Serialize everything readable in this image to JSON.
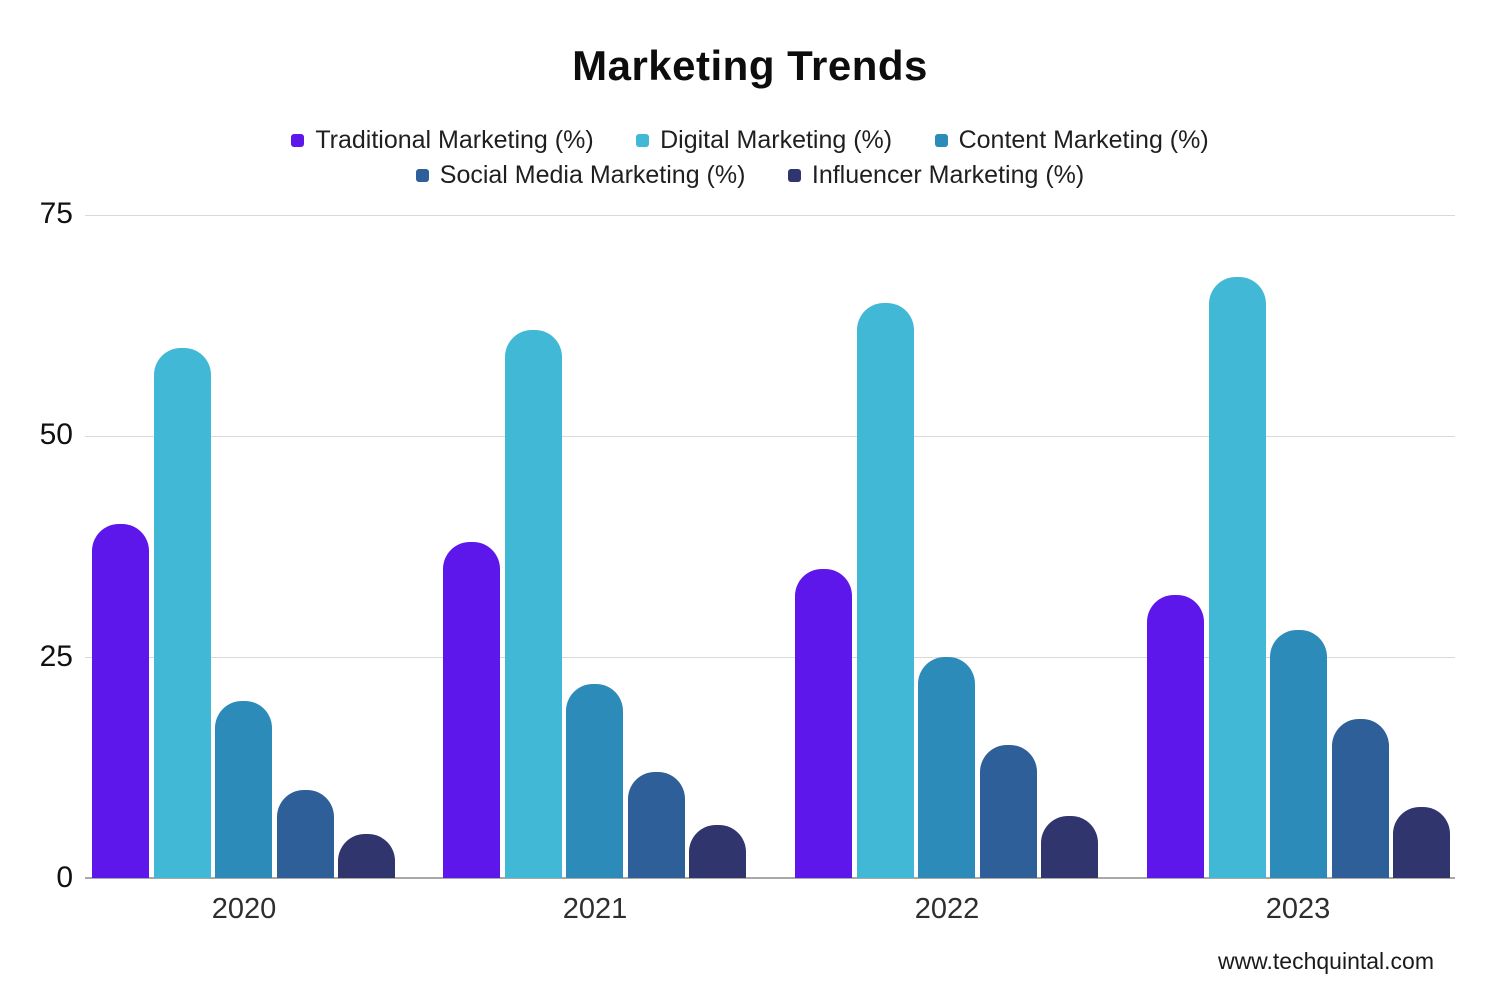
{
  "page": {
    "title": "Marketing Trends",
    "footer_website": "www.techquintal.com"
  },
  "colors": {
    "gridline": "#d9d9d9",
    "axis": "#a8a8a8",
    "title_text": "#0d0d0d",
    "legend_text": "#1f1f1f",
    "tick_text": "#2e2e2e"
  },
  "chart_data": {
    "type": "bar",
    "title": "Marketing Trends",
    "categories": [
      "2020",
      "2021",
      "2022",
      "2023"
    ],
    "series": [
      {
        "name": "Traditional Marketing (%)",
        "color": "#5E17EB",
        "values": [
          40,
          38,
          35,
          32
        ]
      },
      {
        "name": "Digital Marketing (%)",
        "color": "#41B8D5",
        "values": [
          60,
          62,
          65,
          68
        ]
      },
      {
        "name": "Content Marketing (%)",
        "color": "#2D8BBA",
        "values": [
          20,
          22,
          25,
          28
        ]
      },
      {
        "name": "Social Media Marketing (%)",
        "color": "#2F5F98",
        "values": [
          10,
          12,
          15,
          18
        ]
      },
      {
        "name": "Influencer Marketing (%)",
        "color": "#31356E",
        "values": [
          5,
          6,
          7,
          8
        ]
      }
    ],
    "xlabel": "",
    "ylabel": "",
    "ylim": [
      0,
      75
    ],
    "yticks": [
      75,
      50,
      25,
      0
    ],
    "grid": true,
    "legend_position": "top"
  }
}
